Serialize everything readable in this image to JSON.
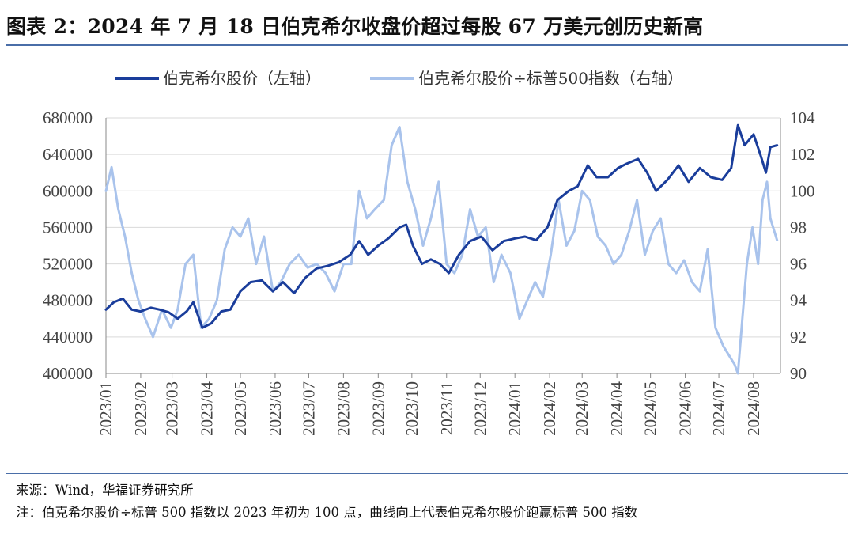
{
  "title": "图表 2：2024 年 7 月 18 日伯克希尔收盘价超过每股 67 万美元创历史新高",
  "source": "来源：Wind，华福证券研究所",
  "footnote": "注：伯克希尔股价÷标普 500 指数以 2023 年初为 100 点，曲线向上代表伯克希尔股价跑赢标普 500 指数",
  "colors": {
    "primary": "#1a3d9b",
    "secondary": "#a9c3ec",
    "grid": "#d9d9d9",
    "rule": "#4a6ea8"
  },
  "chart_data": {
    "type": "line",
    "grid": true,
    "legend_position": "top",
    "x_tick_labels": [
      "2023/01",
      "2023/02",
      "2023/03",
      "2023/04",
      "2023/05",
      "2023/06",
      "2023/07",
      "2023/08",
      "2023/09",
      "2023/10",
      "2023/11",
      "2023/12",
      "2024/01",
      "2024/02",
      "2024/03",
      "2024/04",
      "2024/05",
      "2024/06",
      "2024/07",
      "2024/08"
    ],
    "y_left": {
      "ylim": [
        400000,
        680000
      ],
      "ticks": [
        400000,
        440000,
        480000,
        520000,
        560000,
        600000,
        640000,
        680000
      ]
    },
    "y_right": {
      "ylim": [
        90,
        104
      ],
      "ticks": [
        90,
        92,
        94,
        96,
        98,
        100,
        102,
        104
      ]
    },
    "series": [
      {
        "name": "伯克希尔股价（左轴）",
        "axis": "left",
        "x": [
          "2023-01-01",
          "2023-01-08",
          "2023-01-16",
          "2023-01-24",
          "2023-02-01",
          "2023-02-10",
          "2023-02-18",
          "2023-02-26",
          "2023-03-06",
          "2023-03-14",
          "2023-03-20",
          "2023-03-28",
          "2023-04-05",
          "2023-04-14",
          "2023-04-22",
          "2023-05-01",
          "2023-05-10",
          "2023-05-20",
          "2023-05-30",
          "2023-06-08",
          "2023-06-18",
          "2023-06-28",
          "2023-07-08",
          "2023-07-18",
          "2023-07-28",
          "2023-08-07",
          "2023-08-15",
          "2023-08-23",
          "2023-09-01",
          "2023-09-10",
          "2023-09-20",
          "2023-09-26",
          "2023-10-02",
          "2023-10-10",
          "2023-10-18",
          "2023-10-26",
          "2023-11-03",
          "2023-11-12",
          "2023-11-22",
          "2023-12-02",
          "2023-12-12",
          "2023-12-22",
          "2024-01-01",
          "2024-01-10",
          "2024-01-20",
          "2024-01-30",
          "2024-02-08",
          "2024-02-18",
          "2024-02-26",
          "2024-03-06",
          "2024-03-14",
          "2024-03-24",
          "2024-04-02",
          "2024-04-10",
          "2024-04-20",
          "2024-04-28",
          "2024-05-06",
          "2024-05-16",
          "2024-05-26",
          "2024-06-04",
          "2024-06-14",
          "2024-06-24",
          "2024-07-04",
          "2024-07-12",
          "2024-07-18",
          "2024-07-24",
          "2024-08-01",
          "2024-08-07",
          "2024-08-12",
          "2024-08-16",
          "2024-08-22"
        ],
        "values": [
          470000,
          478000,
          482000,
          470000,
          468000,
          472000,
          470000,
          467000,
          460000,
          468000,
          478000,
          450000,
          455000,
          468000,
          470000,
          490000,
          500000,
          502000,
          490000,
          500000,
          488000,
          505000,
          515000,
          518000,
          522000,
          530000,
          545000,
          530000,
          540000,
          548000,
          560000,
          563000,
          540000,
          520000,
          525000,
          520000,
          510000,
          530000,
          545000,
          550000,
          535000,
          545000,
          548000,
          550000,
          546000,
          560000,
          590000,
          600000,
          605000,
          628000,
          615000,
          615000,
          625000,
          630000,
          635000,
          620000,
          600000,
          612000,
          628000,
          610000,
          625000,
          615000,
          612000,
          625000,
          672000,
          650000,
          662000,
          640000,
          620000,
          648000,
          650000
        ]
      },
      {
        "name": "伯克希尔股价÷标普500指数（右轴）",
        "axis": "right",
        "x": [
          "2023-01-01",
          "2023-01-06",
          "2023-01-12",
          "2023-01-18",
          "2023-01-24",
          "2023-01-30",
          "2023-02-05",
          "2023-02-12",
          "2023-02-20",
          "2023-02-28",
          "2023-03-06",
          "2023-03-13",
          "2023-03-20",
          "2023-03-27",
          "2023-04-03",
          "2023-04-10",
          "2023-04-17",
          "2023-04-24",
          "2023-05-01",
          "2023-05-08",
          "2023-05-15",
          "2023-05-22",
          "2023-05-30",
          "2023-06-06",
          "2023-06-14",
          "2023-06-22",
          "2023-06-30",
          "2023-07-08",
          "2023-07-16",
          "2023-07-24",
          "2023-08-01",
          "2023-08-08",
          "2023-08-15",
          "2023-08-22",
          "2023-08-29",
          "2023-09-06",
          "2023-09-13",
          "2023-09-20",
          "2023-09-27",
          "2023-10-04",
          "2023-10-11",
          "2023-10-18",
          "2023-10-25",
          "2023-11-01",
          "2023-11-08",
          "2023-11-15",
          "2023-11-22",
          "2023-11-29",
          "2023-12-06",
          "2023-12-13",
          "2023-12-20",
          "2023-12-28",
          "2024-01-05",
          "2024-01-12",
          "2024-01-19",
          "2024-01-26",
          "2024-02-02",
          "2024-02-09",
          "2024-02-16",
          "2024-02-23",
          "2024-03-01",
          "2024-03-08",
          "2024-03-15",
          "2024-03-22",
          "2024-03-29",
          "2024-04-05",
          "2024-04-12",
          "2024-04-19",
          "2024-04-26",
          "2024-05-03",
          "2024-05-10",
          "2024-05-17",
          "2024-05-24",
          "2024-05-31",
          "2024-06-07",
          "2024-06-14",
          "2024-06-21",
          "2024-06-28",
          "2024-07-05",
          "2024-07-10",
          "2024-07-15",
          "2024-07-18",
          "2024-07-22",
          "2024-07-26",
          "2024-07-31",
          "2024-08-05",
          "2024-08-09",
          "2024-08-13",
          "2024-08-16",
          "2024-08-22"
        ],
        "values": [
          100,
          101.3,
          99,
          97.5,
          95.5,
          94,
          93,
          92,
          93.5,
          92.5,
          93.5,
          96,
          96.5,
          92.5,
          93,
          94,
          96.8,
          98,
          97.5,
          98.5,
          96,
          97.5,
          94.5,
          95,
          96,
          96.5,
          95.8,
          96,
          95.5,
          94.5,
          96,
          96,
          100,
          98.5,
          99,
          99.5,
          102.5,
          103.5,
          100.5,
          99,
          97,
          98.5,
          100.5,
          96,
          95.5,
          96.5,
          99,
          97.5,
          98,
          95,
          96.5,
          95.5,
          93,
          94,
          95,
          94.2,
          96.5,
          99.5,
          97,
          97.8,
          100,
          99.5,
          97.5,
          97,
          96,
          96.5,
          97.8,
          99.5,
          96.5,
          97.8,
          98.5,
          96,
          95.5,
          96.2,
          95,
          94.5,
          96.8,
          92.5,
          91.5,
          91,
          90.5,
          90,
          93,
          96,
          98,
          96,
          99.5,
          100.5,
          98.5,
          97.3
        ]
      }
    ]
  }
}
